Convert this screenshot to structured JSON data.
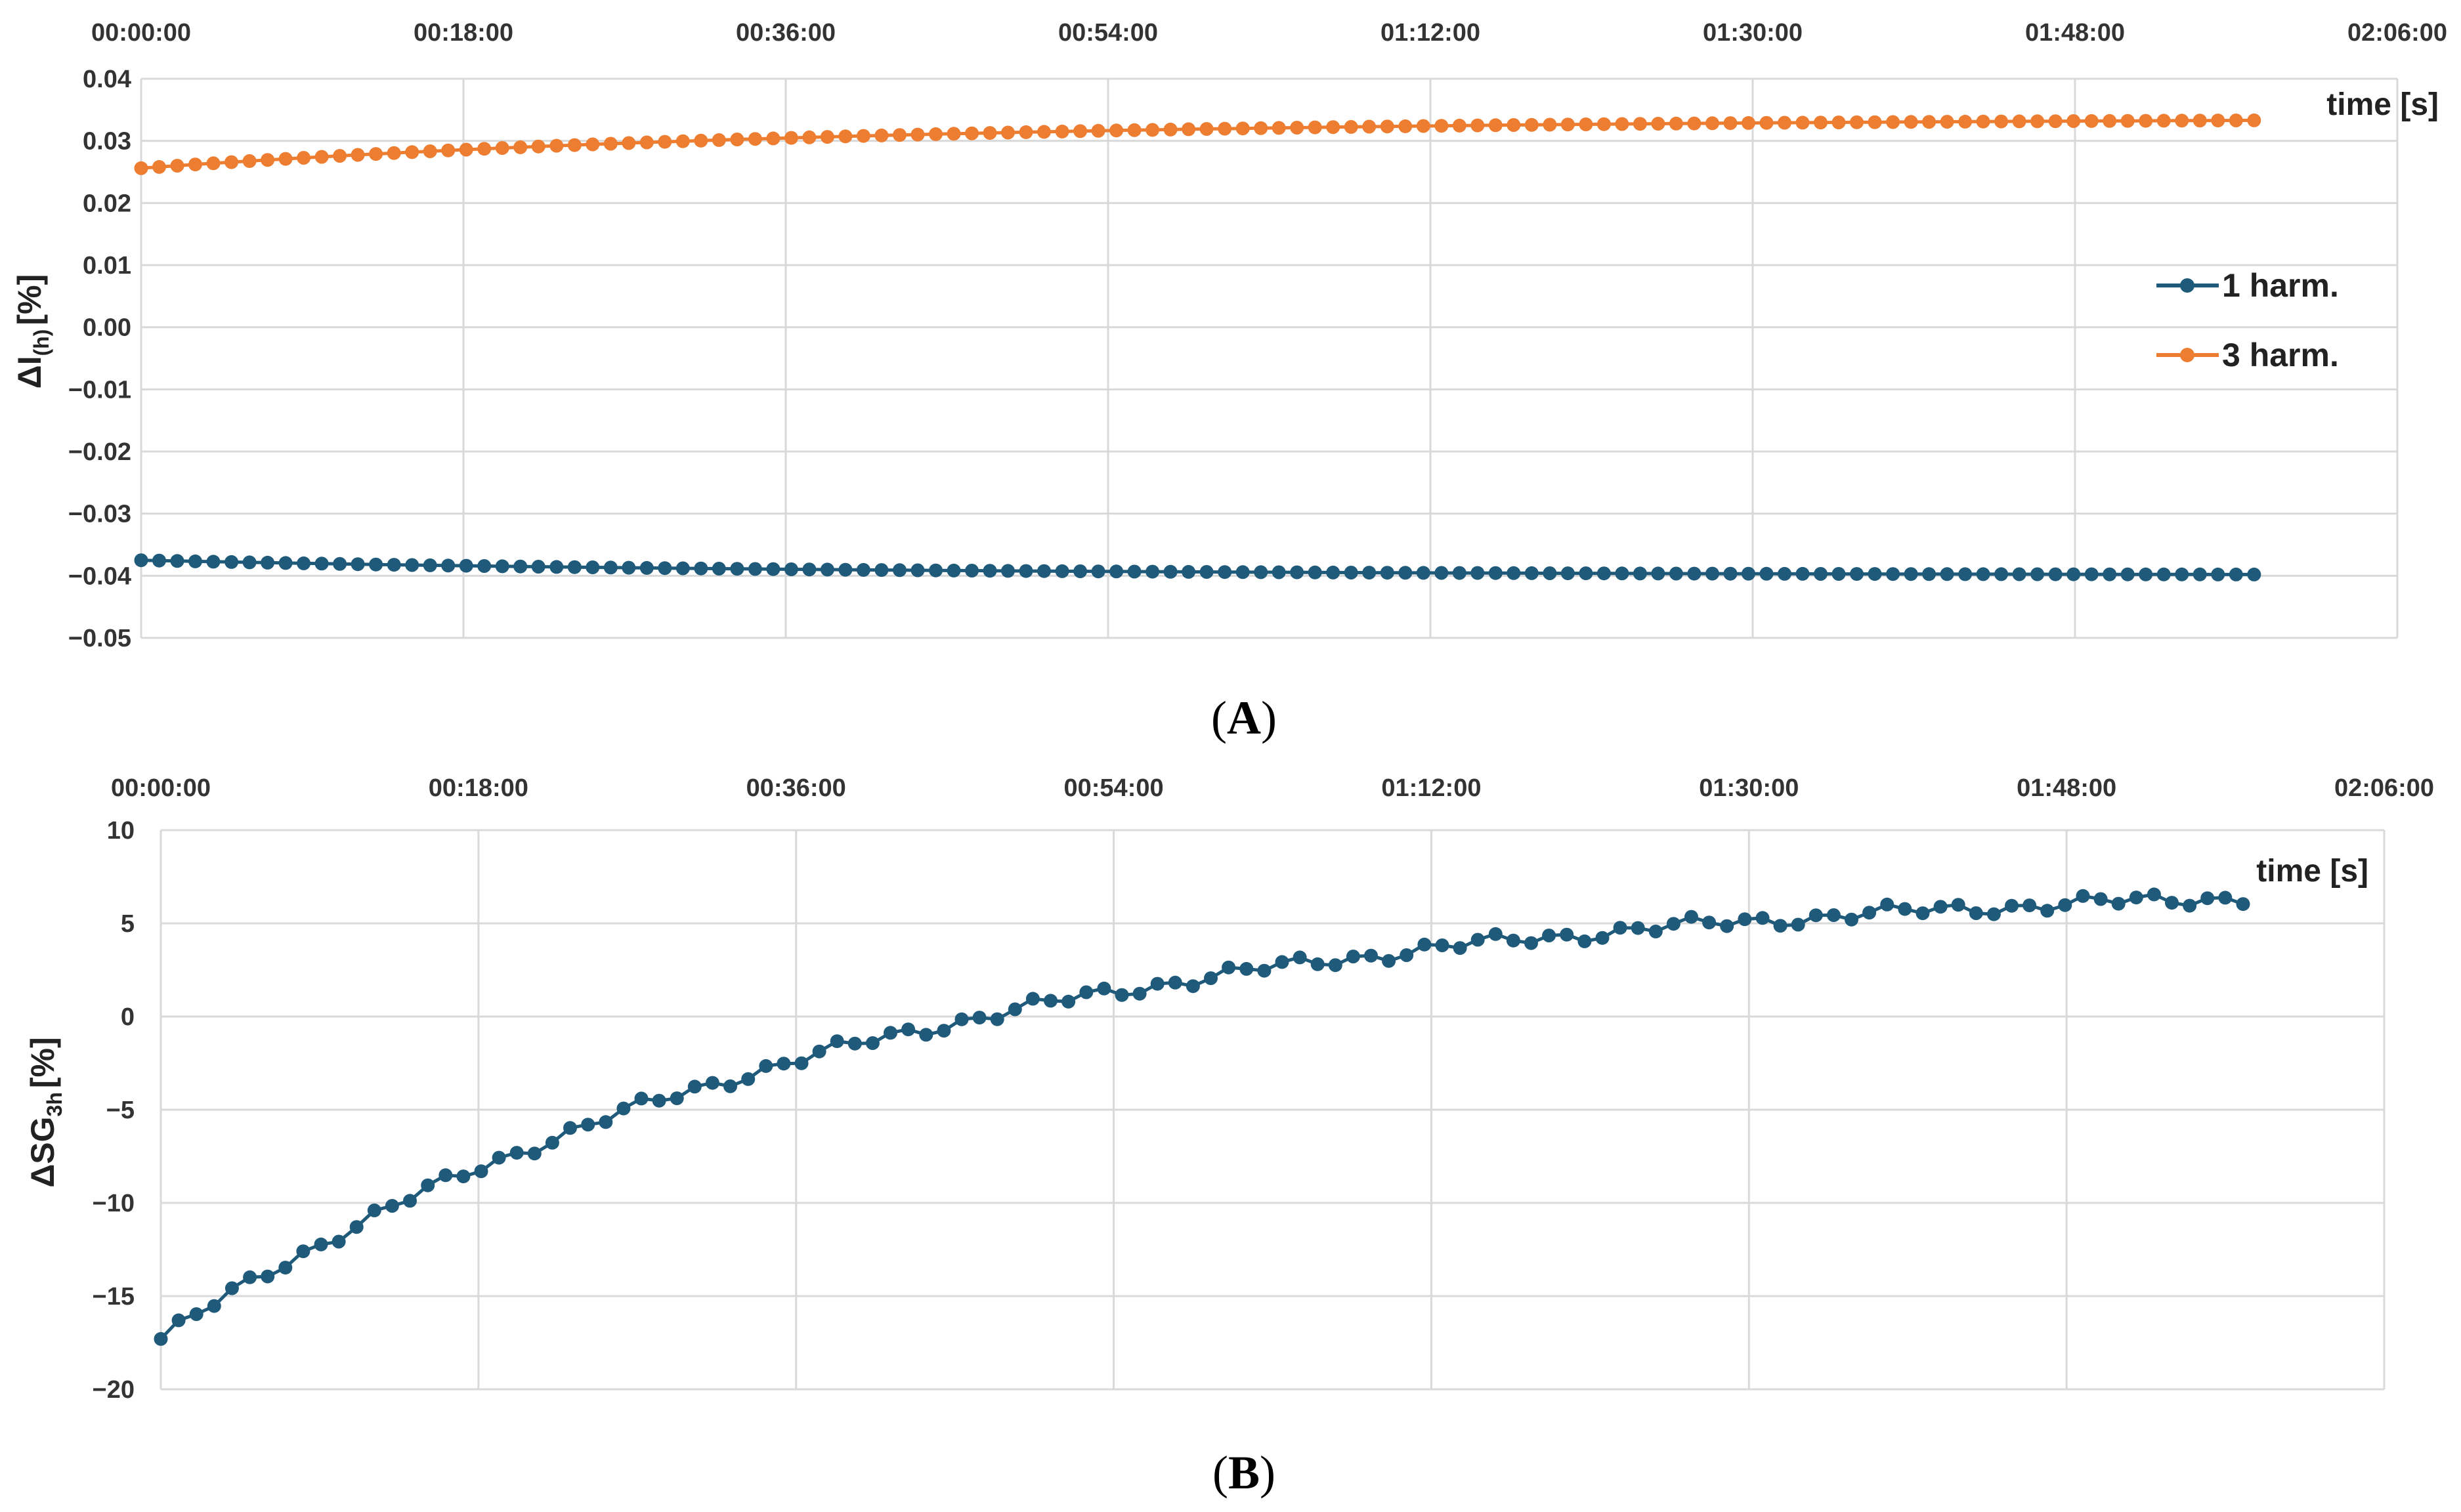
{
  "chart_data": [
    {
      "type": "scatter",
      "panel_label": "A",
      "ylabel_main": "ΔI",
      "ylabel_sub": "(h)",
      "ylabel_unit": "[%]",
      "xlabel": "time [s]",
      "x_tick_labels": [
        "00:00:00",
        "00:18:00",
        "00:36:00",
        "00:54:00",
        "01:12:00",
        "01:30:00",
        "01:48:00",
        "02:06:00"
      ],
      "x_axis_position": "top",
      "xlim_minutes": [
        0,
        126
      ],
      "ylim": [
        -0.05,
        0.04
      ],
      "y_ticks": [
        0.04,
        0.03,
        0.02,
        0.01,
        0.0,
        -0.01,
        -0.02,
        -0.03,
        -0.04,
        -0.05
      ],
      "y_tick_labels": [
        "0.04",
        "0.03",
        "0.02",
        "0.01",
        "0.00",
        "−0.01",
        "−0.02",
        "−0.03",
        "−0.04",
        "−0.05"
      ],
      "grid": true,
      "legend_position": "right",
      "series": [
        {
          "name": "1 harm.",
          "color": "#1f5a7a",
          "x_start_minutes": 0,
          "x_end_minutes": 118,
          "points": 118,
          "y_start": -0.0375,
          "y_end": -0.0398,
          "y_shape": "saturating"
        },
        {
          "name": "3 harm.",
          "color": "#ed7d31",
          "x_start_minutes": 0,
          "x_end_minutes": 118,
          "points": 118,
          "y_start": 0.0256,
          "y_end": 0.0333,
          "y_shape": "saturating"
        }
      ]
    },
    {
      "type": "scatter",
      "panel_label": "B",
      "ylabel_main": "ΔSG",
      "ylabel_sub": "3h",
      "ylabel_unit": "[%]",
      "xlabel": "time [s]",
      "x_tick_labels": [
        "00:00:00",
        "00:18:00",
        "00:36:00",
        "00:54:00",
        "01:12:00",
        "01:30:00",
        "01:48:00",
        "02:06:00"
      ],
      "x_axis_position": "top",
      "xlim_minutes": [
        0,
        126
      ],
      "ylim": [
        -20,
        10
      ],
      "y_ticks": [
        10,
        5,
        0,
        -5,
        -10,
        -15,
        -20
      ],
      "y_tick_labels": [
        "10",
        "5",
        "0",
        "−5",
        "−10",
        "−15",
        "−20"
      ],
      "grid": true,
      "series": [
        {
          "name": "",
          "color": "#1f5a7a",
          "x_start_minutes": 0,
          "x_end_minutes": 118,
          "points": 118,
          "y_start": -17.3,
          "y_end": 6.4,
          "y_shape": "saturating"
        }
      ]
    }
  ]
}
